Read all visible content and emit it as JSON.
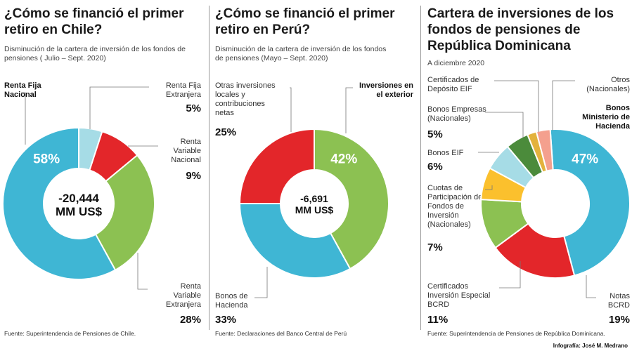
{
  "chart_data": [
    {
      "type": "pie",
      "title": "¿Cómo se financió  el primer retiro en Chile?",
      "subtitle": "Disminución de la cartera de inversión de los fondos de pensiones ( Julio – Sept. 2020)",
      "center_value": "-20,444",
      "center_unit": "MM US$",
      "slices": [
        {
          "label": "Renta Fija Nacional",
          "value": 58,
          "display": "58%",
          "color": "#3fb6d4"
        },
        {
          "label": "Renta Fija Extranjera",
          "value": 5,
          "display": "5%",
          "color": "#a6dce6"
        },
        {
          "label": "Renta Variable Nacional",
          "value": 9,
          "display": "9%",
          "color": "#e3262a"
        },
        {
          "label": "Renta Variable Extranjera",
          "value": 28,
          "display": "28%",
          "color": "#8cc152"
        }
      ],
      "source": "Fuente: Superintendencia de Pensiones de Chile."
    },
    {
      "type": "pie",
      "title": "¿Cómo se financió el primer retiro en Perú?",
      "subtitle": "Disminución de la cartera de inversión de los fondos de pensiones (Mayo – Sept. 2020)",
      "center_value": "-6,691",
      "center_unit": "MM US$",
      "slices": [
        {
          "label": "Inversiones en el exterior",
          "value": 42,
          "display": "42%",
          "color": "#8cc152"
        },
        {
          "label": "Bonos de Hacienda",
          "value": 33,
          "display": "33%",
          "color": "#3fb6d4"
        },
        {
          "label": "Otras inversiones locales y contribuciones netas",
          "value": 25,
          "display": "25%",
          "color": "#e3262a"
        }
      ],
      "source": "Fuente: Declaraciones del Banco Central de Perú"
    },
    {
      "type": "pie",
      "title": "Cartera de inversiones de los fondos de pensiones de República Dominicana",
      "subtitle": "A diciembre 2020",
      "slices": [
        {
          "label": "Bonos Ministerio de Hacienda",
          "value": 47,
          "display": "47%",
          "color": "#3fb6d4"
        },
        {
          "label": "Notas BCRD",
          "value": 19,
          "display": "19%",
          "color": "#e3262a"
        },
        {
          "label": "Certificados Inversión Especial BCRD",
          "value": 11,
          "display": "11%",
          "color": "#8cc152"
        },
        {
          "label": "Cuotas de Participación de Fondos de Inversión (Nacionales)",
          "value": 7,
          "display": "7%",
          "color": "#fbc02d"
        },
        {
          "label": "Bonos EIF",
          "value": 6,
          "display": "6%",
          "color": "#a6dce6"
        },
        {
          "label": "Bonos Empresas (Nacionales)",
          "value": 5,
          "display": "5%",
          "color": "#4b8b3b"
        },
        {
          "label": "Certificados de Depósito EIF",
          "value": 2,
          "display": "",
          "color": "#e3b23c"
        },
        {
          "label": "Otros (Nacionales)",
          "value": 3,
          "display": "",
          "color": "#f4a08e"
        }
      ],
      "source": "Fuente: Superintendencia de Pensiones de República Dominicana."
    }
  ],
  "labels": {
    "chile": {
      "rfn": "Renta Fija Nacional",
      "rfe": "Renta Fija Extranjera",
      "rfe_pct": "5%",
      "rvn": "Renta Variable Nacional",
      "rvn_pct": "9%",
      "rve": "Renta Variable Extranjera",
      "rve_pct": "28%"
    },
    "peru": {
      "otras": "Otras inversiones locales y contribuciones netas",
      "otras_pct": "25%",
      "exterior": "Inversiones en el exterior",
      "bonos": "Bonos de Hacienda",
      "bonos_pct": "33%"
    },
    "rd": {
      "cert_dep": "Certificados de Depósito EIF",
      "otros": "Otros (Nacionales)",
      "bonos_emp": "Bonos Empresas (Nacionales)",
      "bonos_emp_pct": "5%",
      "bonos_min": "Bonos Ministerio de Hacienda",
      "bonos_eif": "Bonos EIF",
      "bonos_eif_pct": "6%",
      "cuotas": "Cuotas de Participación de Fondos de Inversión (Nacionales)",
      "cuotas_pct": "7%",
      "cert_inv": "Certificados Inversión Especial BCRD",
      "cert_inv_pct": "11%",
      "notas": "Notas BCRD",
      "notas_pct": "19%"
    }
  },
  "credit": "Infografía: José M. Medrano"
}
